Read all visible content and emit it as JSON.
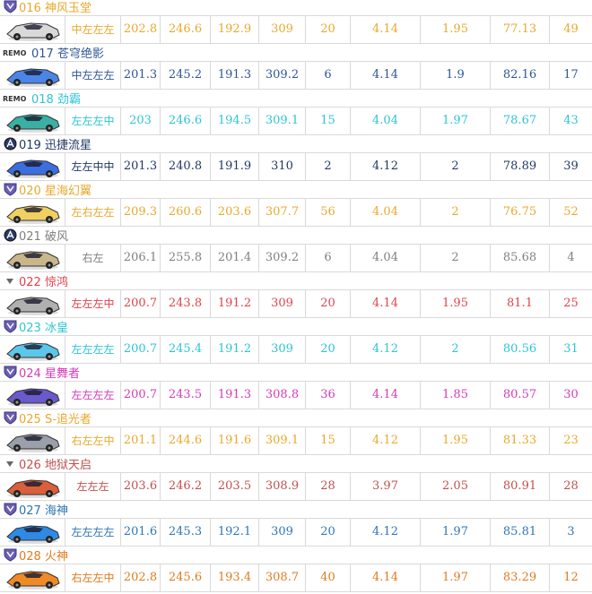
{
  "rows": [
    {
      "code": "016",
      "name": "神风玉堂",
      "badge": "shield-icon",
      "color": "#e8a92c",
      "car_color": "#d9d9d9",
      "route": "中左左左",
      "v1": "202.8",
      "v2": "246.6",
      "v3": "192.9",
      "v4": "309",
      "v5": "20",
      "v6": "4.14",
      "v7": "1.95",
      "v8": "77.13",
      "v9": "49"
    },
    {
      "code": "017",
      "name": "苍穹绝影",
      "badge": "remo-logo",
      "color": "#2f5597",
      "car_color": "#4a86e8",
      "route": "中左左左",
      "v1": "201.3",
      "v2": "245.2",
      "v3": "191.3",
      "v4": "309.2",
      "v5": "6",
      "v6": "4.14",
      "v7": "1.9",
      "v8": "82.16",
      "v9": "17"
    },
    {
      "code": "018",
      "name": "劲霸",
      "badge": "remo-logo",
      "color": "#2ec4d6",
      "car_color": "#3ab0a4",
      "route": "左左左中",
      "v1": "203",
      "v2": "246.6",
      "v3": "194.5",
      "v4": "309.1",
      "v5": "15",
      "v6": "4.04",
      "v7": "1.97",
      "v8": "78.67",
      "v9": "43"
    },
    {
      "code": "019",
      "name": "迅捷流星",
      "badge": "a-circle-icon",
      "color": "#1f3864",
      "car_color": "#3c6ee0",
      "route": "左左中中",
      "v1": "201.3",
      "v2": "240.8",
      "v3": "191.9",
      "v4": "310",
      "v5": "2",
      "v6": "4.12",
      "v7": "2",
      "v8": "78.89",
      "v9": "39"
    },
    {
      "code": "020",
      "name": "星海幻翼",
      "badge": "shield-icon",
      "color": "#e8a92c",
      "car_color": "#f0d060",
      "route": "左右左左",
      "v1": "209.3",
      "v2": "260.6",
      "v3": "203.6",
      "v4": "307.7",
      "v5": "56",
      "v6": "4.04",
      "v7": "2",
      "v8": "76.75",
      "v9": "52"
    },
    {
      "code": "021",
      "name": "破风",
      "badge": "a-circle-icon",
      "color": "#808080",
      "car_color": "#c9b68a",
      "route": "右左",
      "v1": "206.1",
      "v2": "255.8",
      "v3": "201.4",
      "v4": "309.2",
      "v5": "6",
      "v6": "4.04",
      "v7": "2",
      "v8": "85.68",
      "v9": "4"
    },
    {
      "code": "022",
      "name": "惊鸿",
      "badge": "chevron-down-icon",
      "color": "#e0434a",
      "car_color": "#b0b0b0",
      "route": "左左左中",
      "v1": "200.7",
      "v2": "243.8",
      "v3": "191.2",
      "v4": "309",
      "v5": "20",
      "v6": "4.14",
      "v7": "1.95",
      "v8": "81.1",
      "v9": "25"
    },
    {
      "code": "023",
      "name": "冰皇",
      "badge": "shield-icon",
      "color": "#2ec4d6",
      "car_color": "#5bc7ea",
      "route": "左左左左",
      "v1": "200.7",
      "v2": "245.4",
      "v3": "191.2",
      "v4": "309",
      "v5": "20",
      "v6": "4.12",
      "v7": "2",
      "v8": "80.56",
      "v9": "31"
    },
    {
      "code": "024",
      "name": "星舞者",
      "badge": "shield-icon",
      "color": "#d63ab8",
      "car_color": "#6a5acd",
      "route": "左左左左",
      "v1": "200.7",
      "v2": "243.5",
      "v3": "191.3",
      "v4": "308.8",
      "v5": "36",
      "v6": "4.14",
      "v7": "1.85",
      "v8": "80.57",
      "v9": "30"
    },
    {
      "code": "025",
      "name": "S-追光者",
      "badge": "shield-icon",
      "color": "#e8a92c",
      "car_color": "#9aa0aa",
      "route": "右左左中",
      "v1": "201.1",
      "v2": "244.6",
      "v3": "191.6",
      "v4": "309.1",
      "v5": "15",
      "v6": "4.12",
      "v7": "1.95",
      "v8": "81.33",
      "v9": "23"
    },
    {
      "code": "026",
      "name": "地狱天启",
      "badge": "chevron-down-icon",
      "color": "#c0504d",
      "car_color": "#d9603b",
      "route": "左左左",
      "v1": "203.6",
      "v2": "246.2",
      "v3": "203.5",
      "v4": "308.9",
      "v5": "28",
      "v6": "3.97",
      "v7": "2.05",
      "v8": "80.91",
      "v9": "28"
    },
    {
      "code": "027",
      "name": "海神",
      "badge": "shield-icon",
      "color": "#2f75b5",
      "car_color": "#2e8ae6",
      "route": "左左左左",
      "v1": "201.6",
      "v2": "245.3",
      "v3": "192.1",
      "v4": "309",
      "v5": "20",
      "v6": "4.12",
      "v7": "1.97",
      "v8": "85.81",
      "v9": "3"
    },
    {
      "code": "028",
      "name": "火神",
      "badge": "shield-icon",
      "color": "#e07b1f",
      "car_color": "#f08a24",
      "route": "右左左中",
      "v1": "202.8",
      "v2": "245.6",
      "v3": "193.4",
      "v4": "308.7",
      "v5": "40",
      "v6": "4.14",
      "v7": "1.97",
      "v8": "83.29",
      "v9": "12"
    }
  ]
}
